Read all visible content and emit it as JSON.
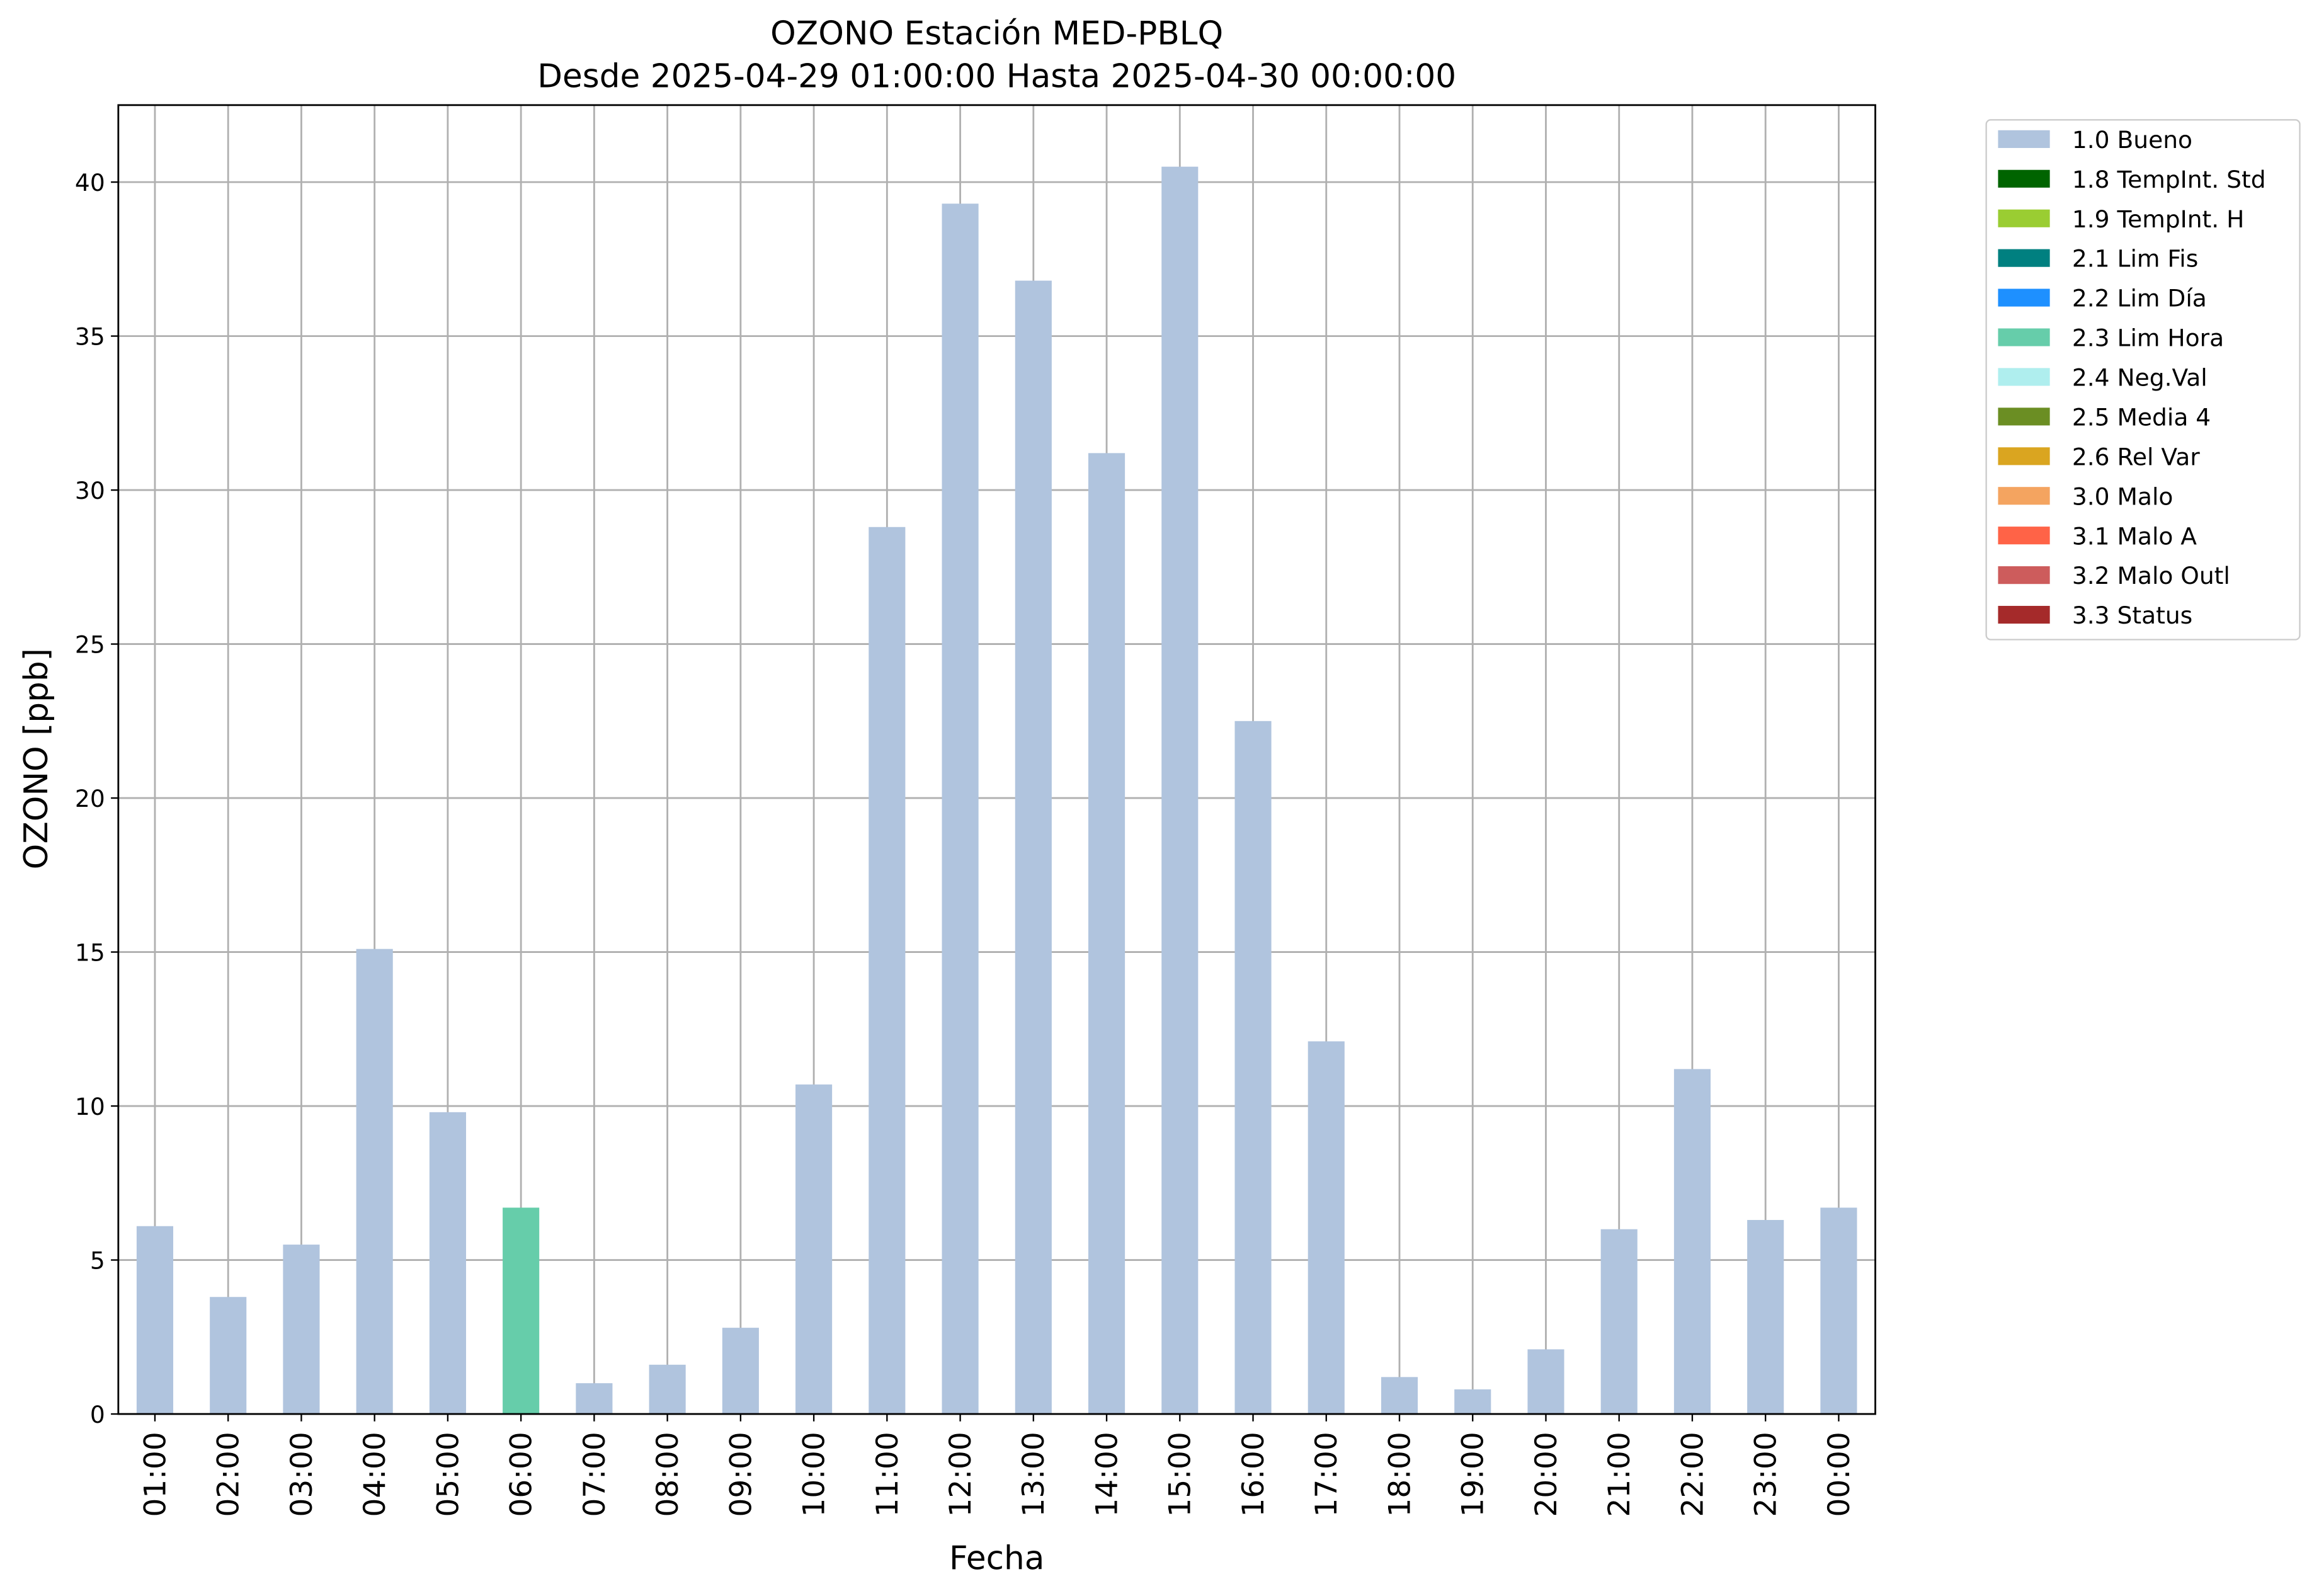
{
  "chart_data": {
    "type": "bar",
    "stacked": true,
    "title": "OZONO Estación MED-PBLQ",
    "subtitle": "Desde 2025-04-29 01:00:00 Hasta 2025-04-30 00:00:00",
    "xlabel": "Fecha",
    "ylabel": "OZONO [ppb]",
    "categories": [
      "01:00",
      "02:00",
      "03:00",
      "04:00",
      "05:00",
      "06:00",
      "07:00",
      "08:00",
      "09:00",
      "10:00",
      "11:00",
      "12:00",
      "13:00",
      "14:00",
      "15:00",
      "16:00",
      "17:00",
      "18:00",
      "19:00",
      "20:00",
      "21:00",
      "22:00",
      "23:00",
      "00:00"
    ],
    "series": [
      {
        "name": "1.0 Bueno",
        "color": "#b0c4de",
        "values": [
          6.1,
          3.8,
          5.5,
          15.1,
          9.8,
          null,
          1.0,
          1.6,
          2.8,
          10.7,
          28.8,
          39.3,
          36.8,
          31.2,
          40.5,
          22.5,
          12.1,
          1.2,
          0.8,
          2.1,
          6.0,
          11.2,
          6.3,
          6.7
        ]
      },
      {
        "name": "1.8 TempInt. Std",
        "color": "#006400",
        "values": [
          null,
          null,
          null,
          null,
          null,
          null,
          null,
          null,
          null,
          null,
          null,
          null,
          null,
          null,
          null,
          null,
          null,
          null,
          null,
          null,
          null,
          null,
          null,
          null
        ]
      },
      {
        "name": "1.9 TempInt. H",
        "color": "#9acd32",
        "values": [
          null,
          null,
          null,
          null,
          null,
          null,
          null,
          null,
          null,
          null,
          null,
          null,
          null,
          null,
          null,
          null,
          null,
          null,
          null,
          null,
          null,
          null,
          null,
          null
        ]
      },
      {
        "name": "2.1 Lim Fis",
        "color": "#008080",
        "values": [
          null,
          null,
          null,
          null,
          null,
          null,
          null,
          null,
          null,
          null,
          null,
          null,
          null,
          null,
          null,
          null,
          null,
          null,
          null,
          null,
          null,
          null,
          null,
          null
        ]
      },
      {
        "name": "2.2 Lim Día",
        "color": "#1e90ff",
        "values": [
          null,
          null,
          null,
          null,
          null,
          null,
          null,
          null,
          null,
          null,
          null,
          null,
          null,
          null,
          null,
          null,
          null,
          null,
          null,
          null,
          null,
          null,
          null,
          null
        ]
      },
      {
        "name": "2.3 Lim Hora",
        "color": "#66cdaa",
        "values": [
          null,
          null,
          null,
          null,
          null,
          6.7,
          null,
          null,
          null,
          null,
          null,
          null,
          null,
          null,
          null,
          null,
          null,
          null,
          null,
          null,
          null,
          null,
          null,
          null
        ]
      },
      {
        "name": "2.4 Neg.Val",
        "color": "#afeeee",
        "values": [
          null,
          null,
          null,
          null,
          null,
          null,
          null,
          null,
          null,
          null,
          null,
          null,
          null,
          null,
          null,
          null,
          null,
          null,
          null,
          null,
          null,
          null,
          null,
          null
        ]
      },
      {
        "name": "2.5 Media 4",
        "color": "#6b8e23",
        "values": [
          null,
          null,
          null,
          null,
          null,
          null,
          null,
          null,
          null,
          null,
          null,
          null,
          null,
          null,
          null,
          null,
          null,
          null,
          null,
          null,
          null,
          null,
          null,
          null
        ]
      },
      {
        "name": "2.6 Rel Var",
        "color": "#daa520",
        "values": [
          null,
          null,
          null,
          null,
          null,
          null,
          null,
          null,
          null,
          null,
          null,
          null,
          null,
          null,
          null,
          null,
          null,
          null,
          null,
          null,
          null,
          null,
          null,
          null
        ]
      },
      {
        "name": "3.0 Malo",
        "color": "#f4a460",
        "values": [
          null,
          null,
          null,
          null,
          null,
          null,
          null,
          null,
          null,
          null,
          null,
          null,
          null,
          null,
          null,
          null,
          null,
          null,
          null,
          null,
          null,
          null,
          null,
          null
        ]
      },
      {
        "name": "3.1 Malo A",
        "color": "#ff6347",
        "values": [
          null,
          null,
          null,
          null,
          null,
          null,
          null,
          null,
          null,
          null,
          null,
          null,
          null,
          null,
          null,
          null,
          null,
          null,
          null,
          null,
          null,
          null,
          null,
          null
        ]
      },
      {
        "name": "3.2 Malo Outl",
        "color": "#cd5c5c",
        "values": [
          null,
          null,
          null,
          null,
          null,
          null,
          null,
          null,
          null,
          null,
          null,
          null,
          null,
          null,
          null,
          null,
          null,
          null,
          null,
          null,
          null,
          null,
          null,
          null
        ]
      },
      {
        "name": "3.3 Status",
        "color": "#a52a2a",
        "values": [
          null,
          null,
          null,
          null,
          null,
          null,
          null,
          null,
          null,
          null,
          null,
          null,
          null,
          null,
          null,
          null,
          null,
          null,
          null,
          null,
          null,
          null,
          null,
          null
        ]
      }
    ],
    "ylim": [
      0,
      42.5
    ],
    "yticks": [
      0,
      5,
      10,
      15,
      20,
      25,
      30,
      35,
      40
    ],
    "grid": true,
    "legend": "outside upper right"
  }
}
